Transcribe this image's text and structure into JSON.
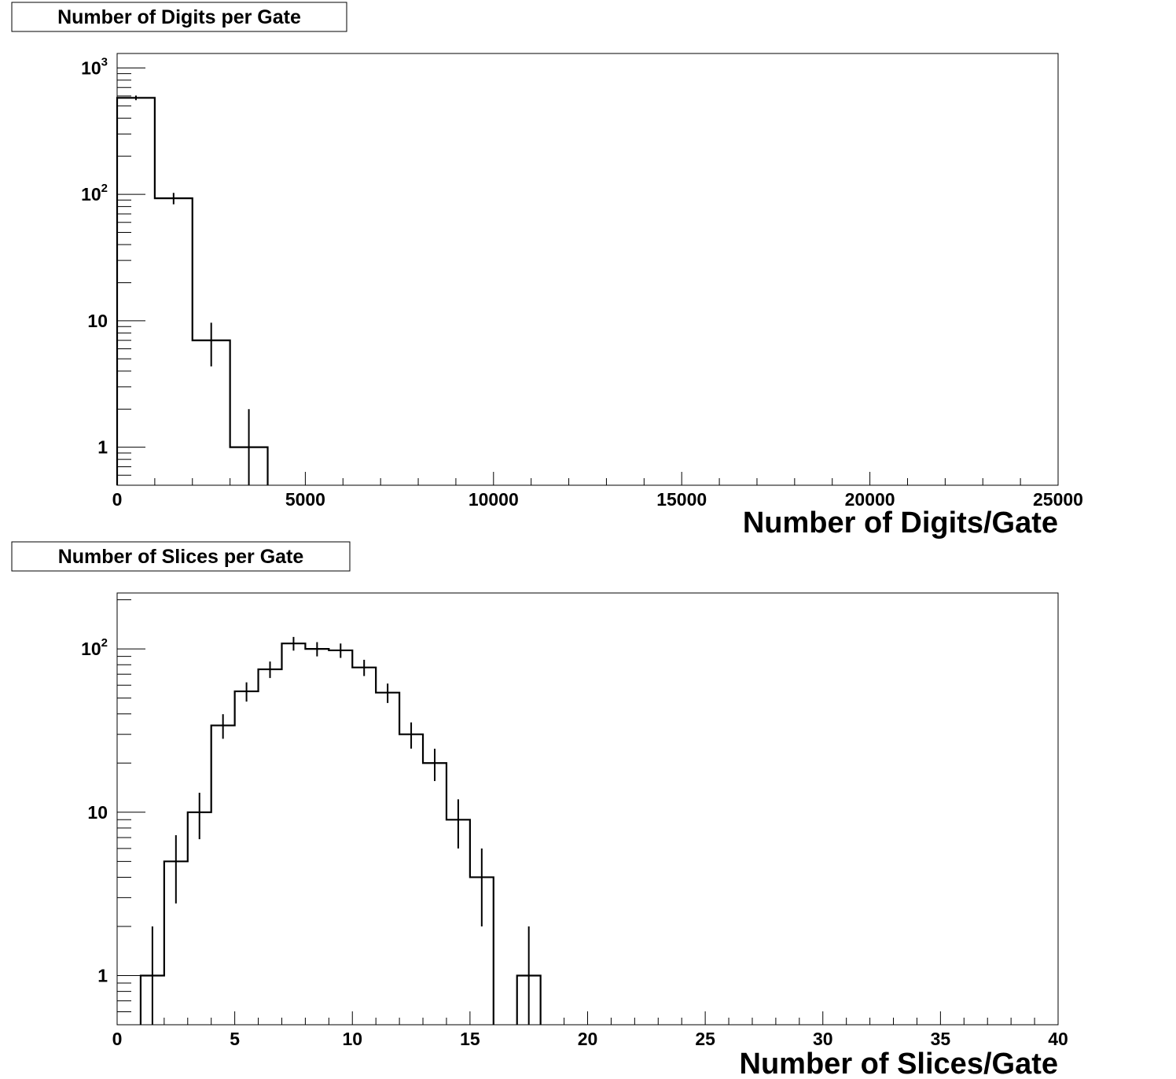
{
  "chart_data": [
    {
      "type": "bar",
      "title": "Number of Digits per Gate",
      "xlabel": "Number of Digits/Gate",
      "ylabel": "",
      "xlim": [
        0,
        25000
      ],
      "ylim": [
        0.5,
        1300
      ],
      "log_y": true,
      "grid": false,
      "style": "step-histogram-with-error-bars",
      "bin_width": 1000,
      "x_ticks": [
        0,
        5000,
        10000,
        15000,
        20000,
        25000
      ],
      "x_tick_labels": [
        "0",
        "5000",
        "10000",
        "15000",
        "20000",
        "25000"
      ],
      "y_ticks": [
        1,
        10,
        100,
        1000
      ],
      "y_tick_labels": [
        {
          "base": "1",
          "exp": ""
        },
        {
          "base": "10",
          "exp": ""
        },
        {
          "base": "10",
          "exp": "2"
        },
        {
          "base": "10",
          "exp": "3"
        }
      ],
      "x": [
        500,
        1500,
        2500,
        3500
      ],
      "values": [
        580,
        93,
        7,
        1
      ]
    },
    {
      "type": "bar",
      "title": "Number of Slices per Gate",
      "xlabel": "Number of Slices/Gate",
      "ylabel": "",
      "xlim": [
        0,
        40
      ],
      "ylim": [
        0.5,
        220
      ],
      "log_y": true,
      "grid": false,
      "style": "step-histogram-with-error-bars",
      "bin_width": 1,
      "x_ticks": [
        0,
        5,
        10,
        15,
        20,
        25,
        30,
        35,
        40
      ],
      "x_tick_labels": [
        "0",
        "5",
        "10",
        "15",
        "20",
        "25",
        "30",
        "35",
        "40"
      ],
      "y_ticks": [
        1,
        10,
        100
      ],
      "y_tick_labels": [
        {
          "base": "1",
          "exp": ""
        },
        {
          "base": "10",
          "exp": ""
        },
        {
          "base": "10",
          "exp": "2"
        }
      ],
      "x": [
        1.5,
        2.5,
        3.5,
        4.5,
        5.5,
        6.5,
        7.5,
        8.5,
        9.5,
        10.5,
        11.5,
        12.5,
        13.5,
        14.5,
        15.5,
        17.5
      ],
      "values": [
        1,
        5,
        10,
        34,
        55,
        75,
        108,
        100,
        98,
        77,
        54,
        30,
        20,
        9,
        4,
        1
      ]
    }
  ]
}
